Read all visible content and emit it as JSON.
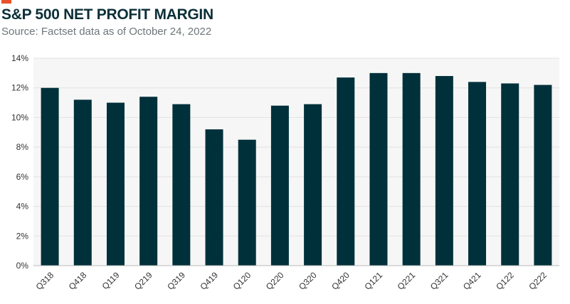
{
  "header": {
    "title": "S&P 500 NET PROFIT MARGIN",
    "subtitle": "Source: Factset data as of October 24, 2022"
  },
  "colors": {
    "accent": "#e8512a",
    "title": "#0b2f37",
    "bar": "#00303a",
    "plot_background": "#f6f6f6",
    "grid": "#e2e2e2"
  },
  "chart_data": {
    "type": "bar",
    "title": "S&P 500 NET PROFIT MARGIN",
    "subtitle": "Source: Factset data as of October 24, 2022",
    "categories": [
      "Q318",
      "Q418",
      "Q119",
      "Q219",
      "Q319",
      "Q419",
      "Q120",
      "Q220",
      "Q320",
      "Q420",
      "Q121",
      "Q221",
      "Q321",
      "Q421",
      "Q122",
      "Q222"
    ],
    "values": [
      12.0,
      11.2,
      11.0,
      11.4,
      10.9,
      9.2,
      8.5,
      10.8,
      10.9,
      12.7,
      13.0,
      13.0,
      12.8,
      12.4,
      12.3,
      12.2
    ],
    "unit": "%",
    "ylim": [
      0,
      14
    ],
    "yticks": [
      "0%",
      "2%",
      "4%",
      "6%",
      "8%",
      "10%",
      "12%",
      "14%"
    ],
    "xlabel": "",
    "ylabel": "",
    "grid": true,
    "legend": "none"
  }
}
